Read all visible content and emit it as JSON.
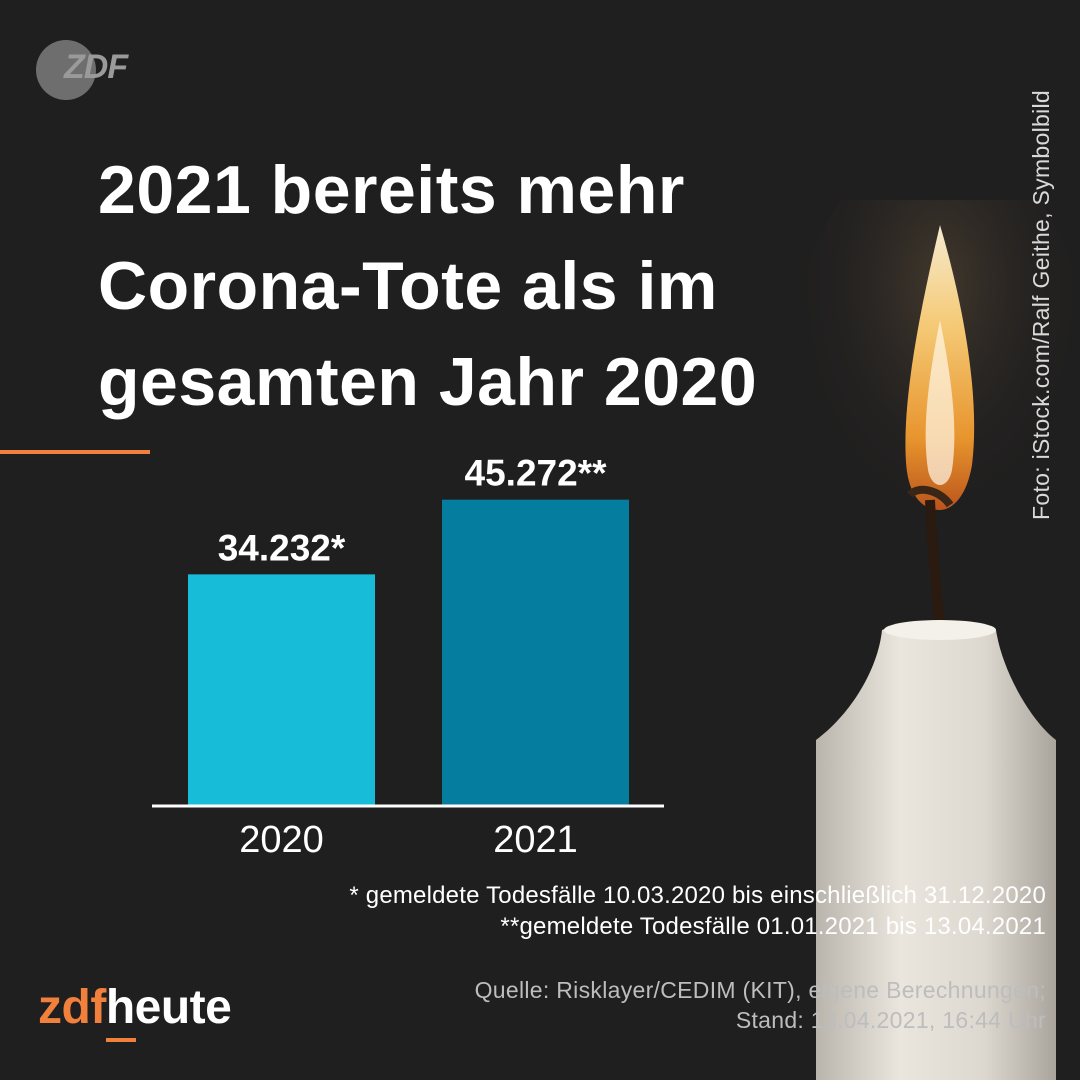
{
  "brand_colors": {
    "accent": "#f0803c",
    "background": "#201f1f",
    "bar_2020": "#17bcd8",
    "bar_2021": "#057d9f"
  },
  "logo": {
    "text": "ZDF",
    "icon": "zdf-logo-icon"
  },
  "title": "2021 bereits mehr Corona-Tote als im gesamten Jahr 2020",
  "photo_credit": "Foto: iStock.com/Ralf Geithe, Symbolbild",
  "chart_data": {
    "type": "bar",
    "categories": [
      "2020",
      "2021"
    ],
    "values": [
      34232,
      45272
    ],
    "value_labels": [
      "34.232*",
      "45.272**"
    ],
    "colors": [
      "#17bcd8",
      "#057d9f"
    ],
    "ylim": [
      0,
      60000
    ],
    "grid": false,
    "title": "",
    "xlabel": "",
    "ylabel": ""
  },
  "footnotes": [
    "* gemeldete Todesfälle 10.03.2020 bis einschließlich 31.12.2020",
    "**gemeldete Todesfälle 01.01.2021 bis 13.04.2021"
  ],
  "source": "Quelle: Risklayer/CEDIM (KIT), eigene Berechnungen;",
  "stand": "Stand: 13.04.2021, 16:44 Uhr",
  "footer_brand": {
    "part1": "zdf",
    "part2": "heute"
  }
}
